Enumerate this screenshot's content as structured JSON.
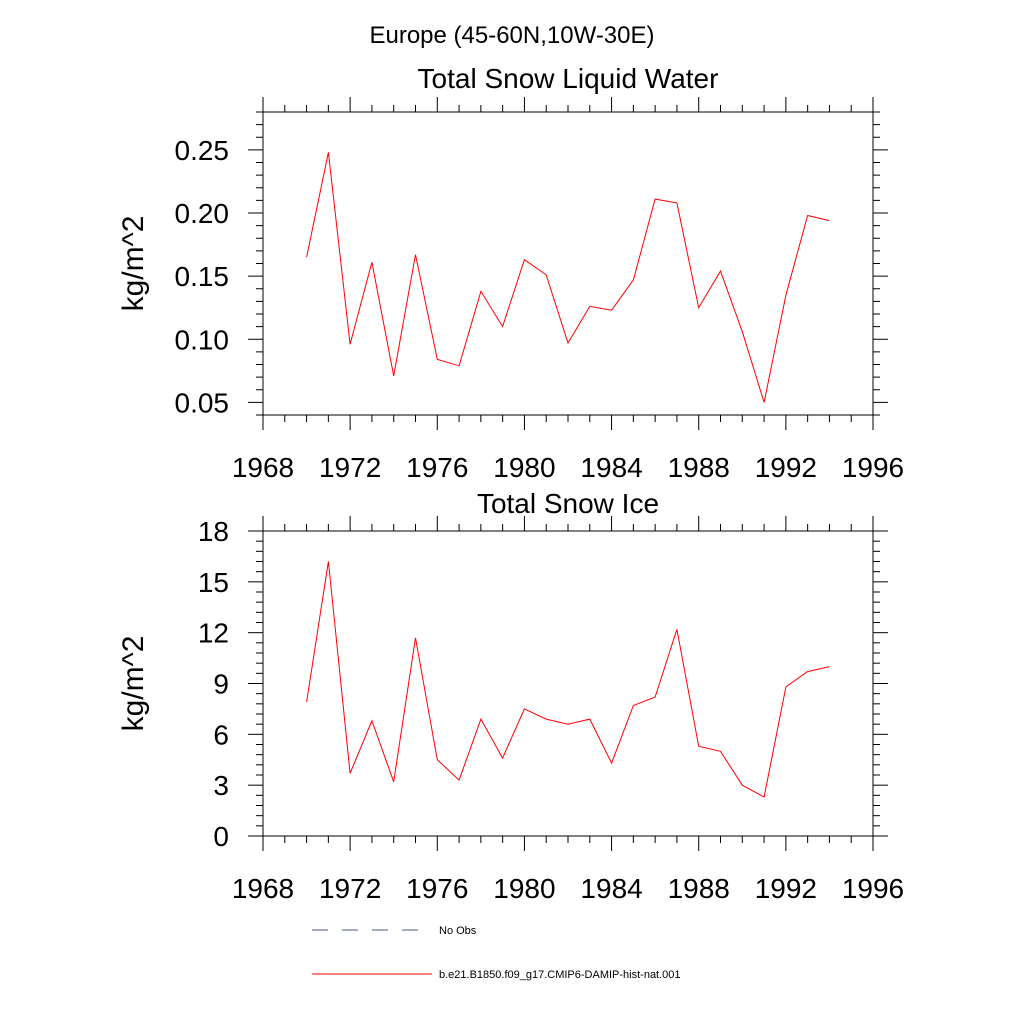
{
  "page_title": "Europe (45-60N,10W-30E)",
  "chart_data": [
    {
      "type": "line",
      "title": "Total Snow Liquid Water",
      "xlabel": "",
      "ylabel": "kg/m^2",
      "xlim": [
        1968,
        1996
      ],
      "ylim": [
        0.04,
        0.28
      ],
      "xticks": [
        1968,
        1972,
        1976,
        1980,
        1984,
        1988,
        1992,
        1996
      ],
      "yticks": [
        0.05,
        0.1,
        0.15,
        0.2,
        0.25
      ],
      "ytick_labels": [
        "0.05",
        "0.10",
        "0.15",
        "0.20",
        "0.25"
      ],
      "x": [
        1970,
        1971,
        1972,
        1973,
        1974,
        1975,
        1976,
        1977,
        1978,
        1979,
        1980,
        1981,
        1982,
        1983,
        1984,
        1985,
        1986,
        1987,
        1988,
        1989,
        1990,
        1991,
        1992,
        1993,
        1994
      ],
      "series": [
        {
          "name": "b.e21.B1850.f09_g17.CMIP6-DAMIP-hist-nat.001",
          "color": "#ff0000",
          "values": [
            0.165,
            0.248,
            0.096,
            0.161,
            0.071,
            0.167,
            0.084,
            0.079,
            0.138,
            0.11,
            0.163,
            0.151,
            0.097,
            0.126,
            0.123,
            0.147,
            0.211,
            0.208,
            0.125,
            0.154,
            0.106,
            0.05,
            0.135,
            0.198,
            0.194
          ]
        }
      ]
    },
    {
      "type": "line",
      "title": "Total Snow Ice",
      "xlabel": "",
      "ylabel": "kg/m^2",
      "xlim": [
        1968,
        1996
      ],
      "ylim": [
        0,
        18
      ],
      "xticks": [
        1968,
        1972,
        1976,
        1980,
        1984,
        1988,
        1992,
        1996
      ],
      "yticks": [
        0,
        3,
        6,
        9,
        12,
        15,
        18
      ],
      "ytick_labels": [
        "0",
        "3",
        "6",
        "9",
        "12",
        "15",
        "18"
      ],
      "x": [
        1970,
        1971,
        1972,
        1973,
        1974,
        1975,
        1976,
        1977,
        1978,
        1979,
        1980,
        1981,
        1982,
        1983,
        1984,
        1985,
        1986,
        1987,
        1988,
        1989,
        1990,
        1991,
        1992,
        1993,
        1994
      ],
      "series": [
        {
          "name": "b.e21.B1850.f09_g17.CMIP6-DAMIP-hist-nat.001",
          "color": "#ff0000",
          "values": [
            7.9,
            16.2,
            3.7,
            6.8,
            3.2,
            11.7,
            4.5,
            3.3,
            6.9,
            4.6,
            7.5,
            6.9,
            6.6,
            6.9,
            4.3,
            7.7,
            8.2,
            12.2,
            5.3,
            5.0,
            3.0,
            2.3,
            8.8,
            9.7,
            10.0
          ]
        }
      ]
    }
  ],
  "legend": {
    "placement": "bottom",
    "items": [
      {
        "label": "No Obs",
        "style": "dashed",
        "color": "#4a5a8a"
      },
      {
        "label": "b.e21.B1850.f09_g17.CMIP6-DAMIP-hist-nat.001",
        "style": "solid",
        "color": "#ff0000"
      }
    ]
  }
}
